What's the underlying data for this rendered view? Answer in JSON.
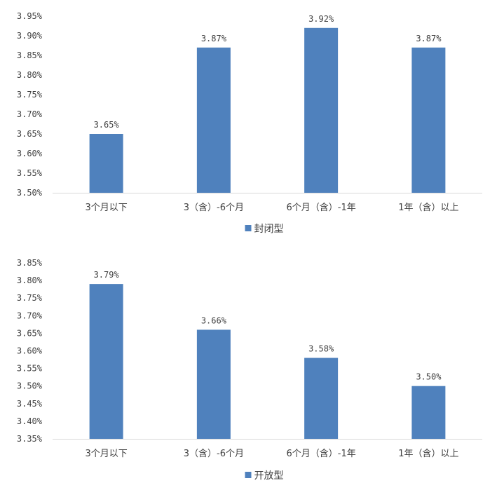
{
  "chart_data": [
    {
      "type": "bar",
      "categories": [
        "3个月以下",
        "3（含）-6个月",
        "6个月（含）-1年",
        "1年（含）以上"
      ],
      "series": [
        {
          "name": "封闭型",
          "values": [
            3.65,
            3.87,
            3.92,
            3.87
          ],
          "data_labels": [
            "3.65%",
            "3.87%",
            "3.92%",
            "3.87%"
          ],
          "color": "#4F81BD"
        }
      ],
      "y_ticks": [
        "3.50%",
        "3.55%",
        "3.60%",
        "3.65%",
        "3.70%",
        "3.75%",
        "3.80%",
        "3.85%",
        "3.90%",
        "3.95%"
      ],
      "ylim": [
        3.5,
        3.95
      ],
      "grid": false,
      "legend": "bottom"
    },
    {
      "type": "bar",
      "categories": [
        "3个月以下",
        "3（含）-6个月",
        "6个月（含）-1年",
        "1年（含）以上"
      ],
      "series": [
        {
          "name": "开放型",
          "values": [
            3.79,
            3.66,
            3.58,
            3.5
          ],
          "data_labels": [
            "3.79%",
            "3.66%",
            "3.58%",
            "3.50%"
          ],
          "color": "#4F81BD"
        }
      ],
      "y_ticks": [
        "3.35%",
        "3.40%",
        "3.45%",
        "3.50%",
        "3.55%",
        "3.60%",
        "3.65%",
        "3.70%",
        "3.75%",
        "3.80%",
        "3.85%"
      ],
      "ylim": [
        3.35,
        3.85
      ],
      "grid": false,
      "legend": "bottom"
    }
  ]
}
